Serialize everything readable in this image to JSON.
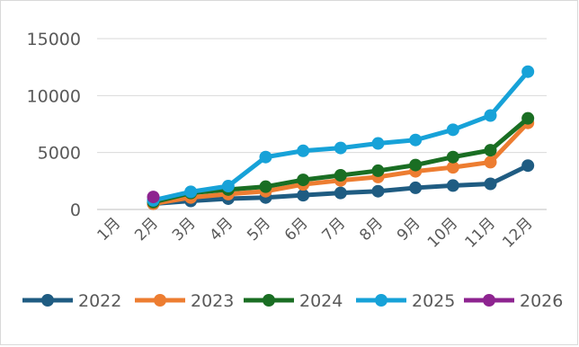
{
  "chart_data": {
    "type": "line",
    "title": "",
    "xlabel": "",
    "ylabel": "",
    "categories": [
      "1月",
      "2月",
      "3月",
      "4月",
      "5月",
      "6月",
      "7月",
      "8月",
      "9月",
      "10月",
      "11月",
      "12月"
    ],
    "ylim": [
      0,
      15000
    ],
    "yticks": [
      "0",
      "5000",
      "10000",
      "15000"
    ],
    "grid": true,
    "legend_position": "bottom",
    "series": [
      {
        "name": "2022",
        "color": "#1f5c82",
        "values": [
          null,
          500,
          750,
          950,
          1050,
          1250,
          1450,
          1600,
          1900,
          2100,
          2250,
          3850
        ]
      },
      {
        "name": "2023",
        "color": "#ed7d31",
        "values": [
          null,
          500,
          1050,
          1350,
          1600,
          2200,
          2550,
          2850,
          3350,
          3700,
          4150,
          7600
        ]
      },
      {
        "name": "2024",
        "color": "#1a6e23",
        "values": [
          null,
          650,
          1450,
          1750,
          2000,
          2600,
          3000,
          3400,
          3900,
          4600,
          5200,
          8000
        ]
      },
      {
        "name": "2025",
        "color": "#17a2d8",
        "values": [
          null,
          800,
          1550,
          2050,
          4600,
          5150,
          5400,
          5800,
          6100,
          7000,
          8250,
          12100
        ]
      },
      {
        "name": "2026",
        "color": "#8e2490",
        "values": [
          null,
          1100,
          null,
          null,
          null,
          null,
          null,
          null,
          null,
          null,
          null,
          null
        ]
      }
    ]
  }
}
